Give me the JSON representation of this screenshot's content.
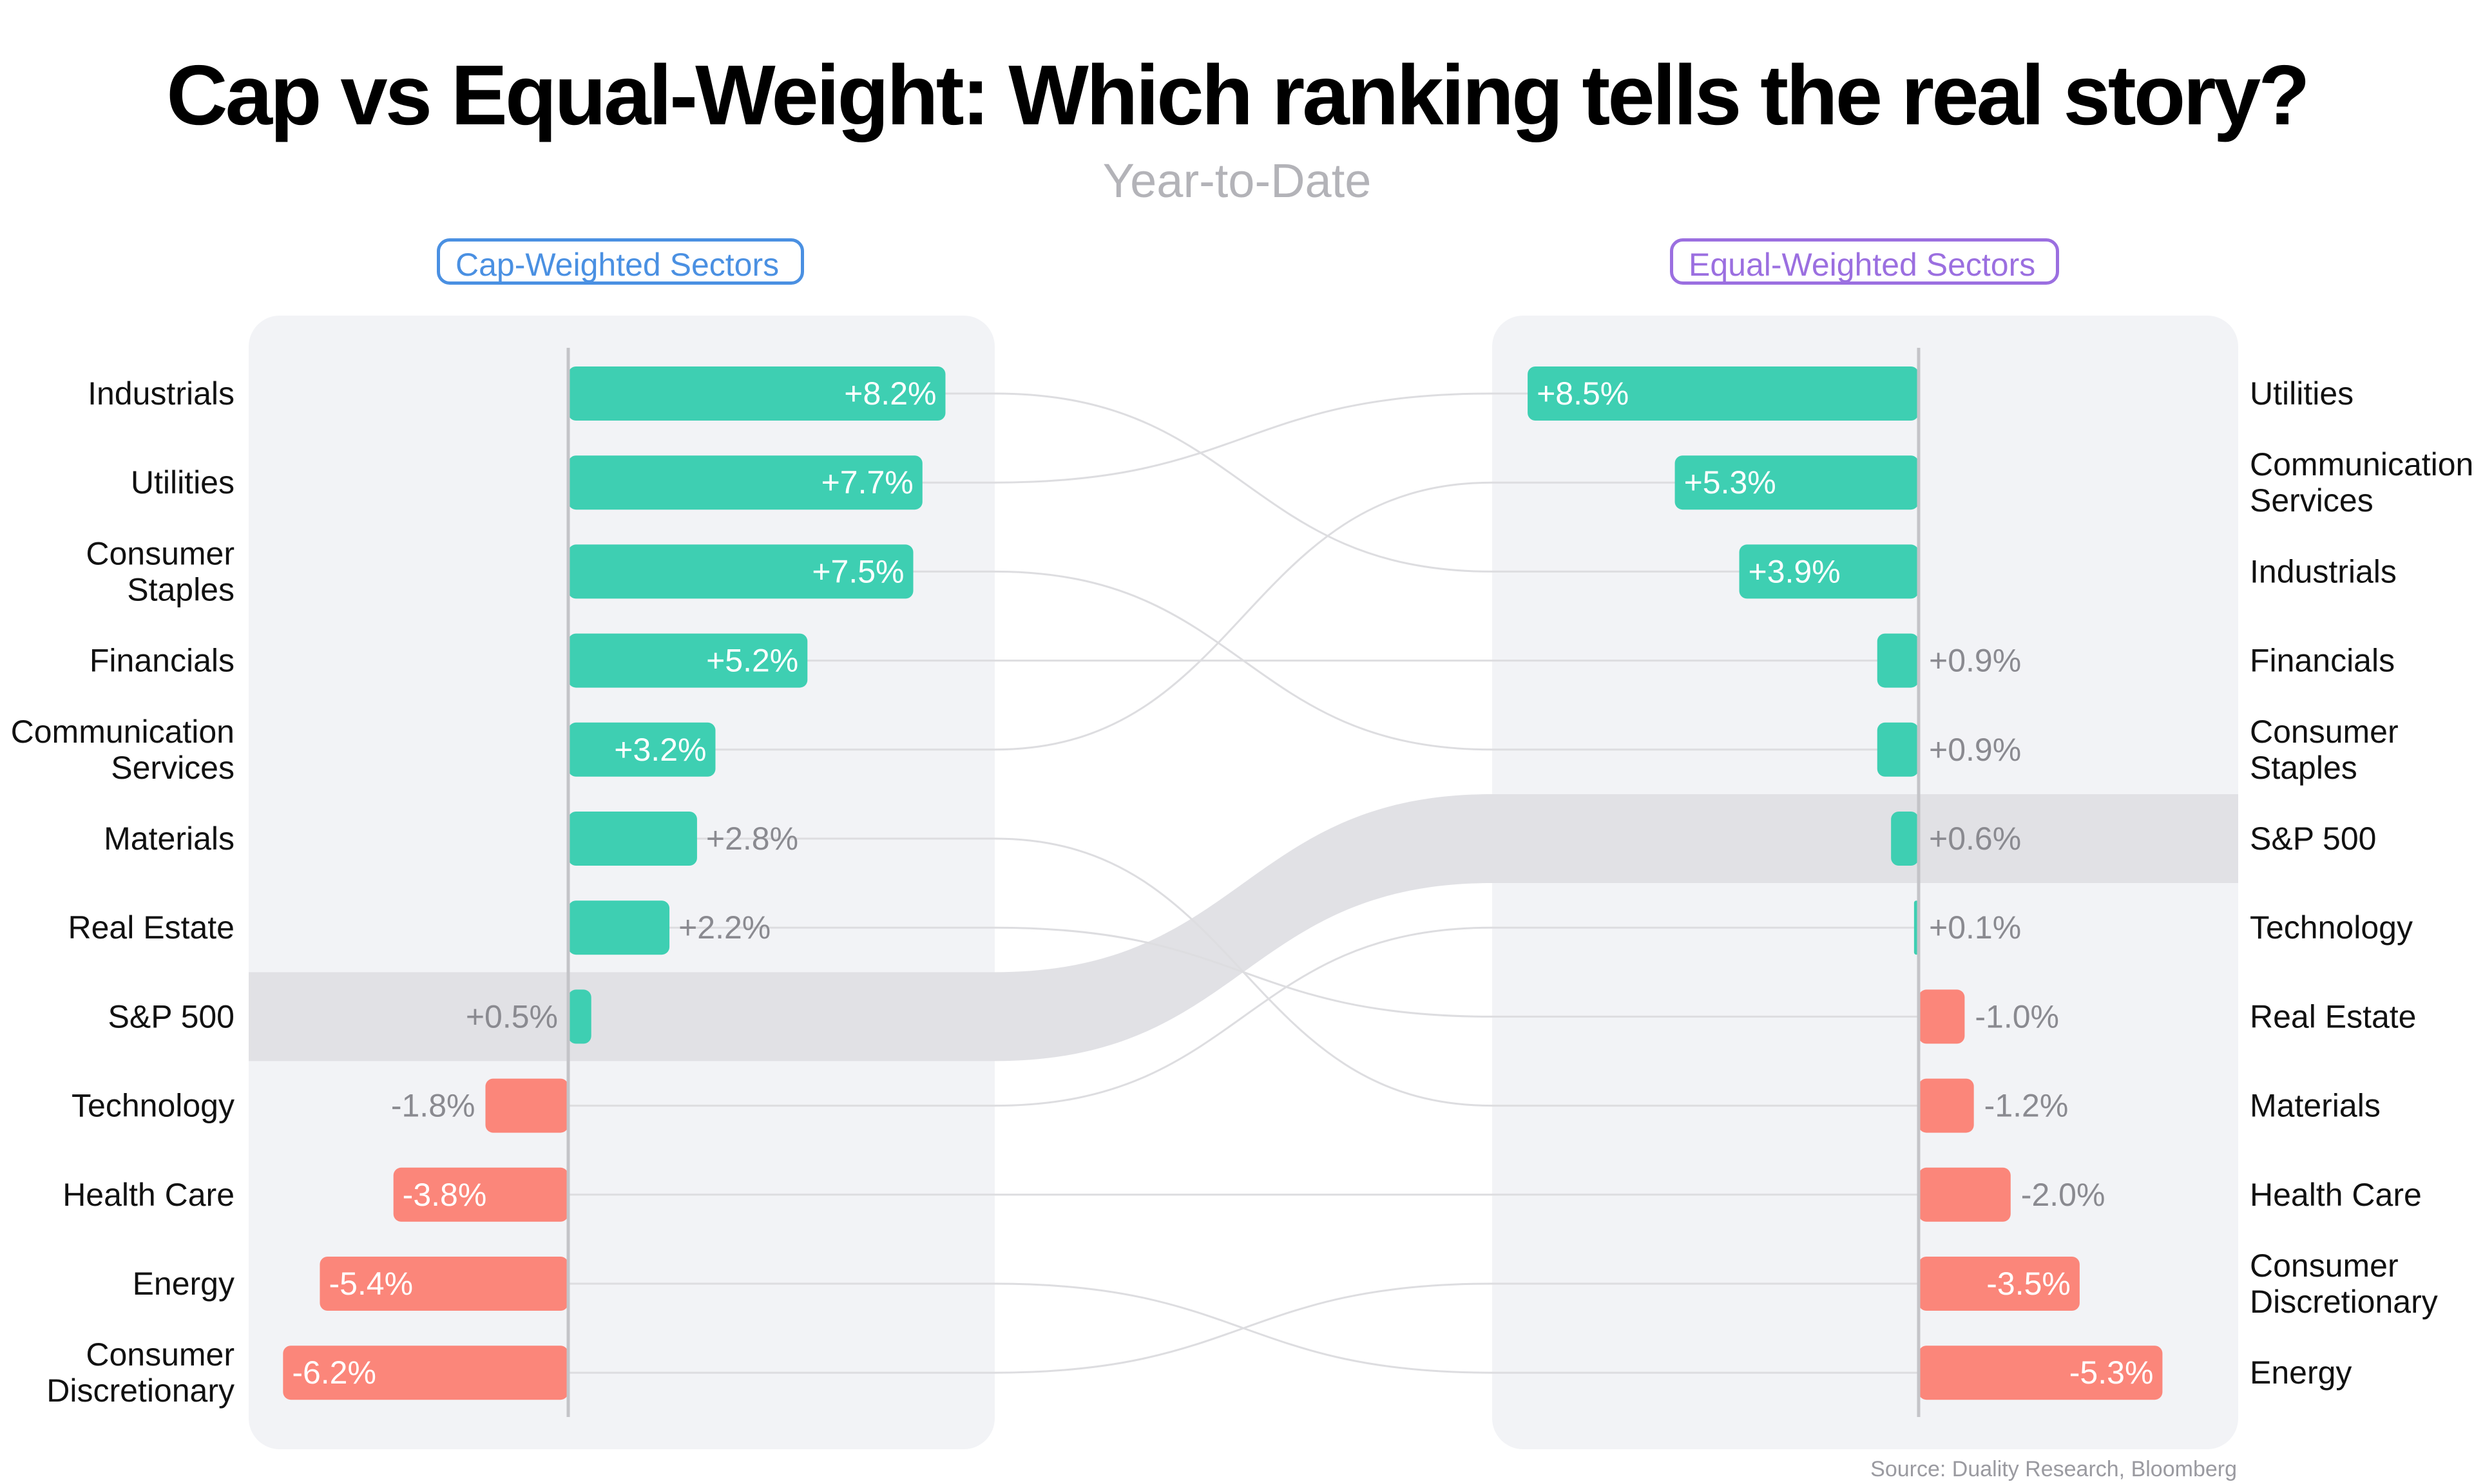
{
  "title": "Cap vs Equal-Weight: Which ranking tells the real story?",
  "subtitle": "Year-to-Date",
  "source": "Source: Duality Research, Bloomberg",
  "colors": {
    "positive": "#3ecfb2",
    "negative": "#fb867a",
    "panel": "#f2f3f6",
    "highlight": "#e1e1e5",
    "connector": "#dddde0",
    "cap_accent": "#4a90e2",
    "equal_accent": "#9b6fe0",
    "muted_label": "#8a8a90"
  },
  "chart_data": [
    {
      "type": "bar",
      "orientation": "horizontal",
      "title": "Cap-Weighted Sectors",
      "highlight": "S&P 500",
      "categories": [
        "Industrials",
        "Utilities",
        "Consumer Staples",
        "Financials",
        "Communication Services",
        "Materials",
        "Real Estate",
        "S&P 500",
        "Technology",
        "Health Care",
        "Energy",
        "Consumer Discretionary"
      ],
      "label_lines": [
        [
          "Industrials"
        ],
        [
          "Utilities"
        ],
        [
          "Consumer",
          "Staples"
        ],
        [
          "Financials"
        ],
        [
          "Communication",
          "Services"
        ],
        [
          "Materials"
        ],
        [
          "Real Estate"
        ],
        [
          "S&P 500"
        ],
        [
          "Technology"
        ],
        [
          "Health Care"
        ],
        [
          "Energy"
        ],
        [
          "Consumer",
          "Discretionary"
        ]
      ],
      "values": [
        8.2,
        7.7,
        7.5,
        5.2,
        3.2,
        2.8,
        2.2,
        0.5,
        -1.8,
        -3.8,
        -5.4,
        -6.2
      ],
      "value_labels": [
        "+8.2%",
        "+7.7%",
        "+7.5%",
        "+5.2%",
        "+3.2%",
        "+2.8%",
        "+2.2%",
        "+0.5%",
        "-1.8%",
        "-3.8%",
        "-5.4%",
        "-6.2%"
      ],
      "xlim": [
        -7,
        9.3
      ]
    },
    {
      "type": "bar",
      "orientation": "horizontal",
      "title": "Equal-Weighted Sectors",
      "highlight": "S&P 500",
      "categories": [
        "Utilities",
        "Communication Services",
        "Industrials",
        "Financials",
        "Consumer Staples",
        "S&P 500",
        "Technology",
        "Real Estate",
        "Materials",
        "Health Care",
        "Consumer Discretionary",
        "Energy"
      ],
      "label_lines": [
        [
          "Utilities"
        ],
        [
          "Communication",
          "Services"
        ],
        [
          "Industrials"
        ],
        [
          "Financials"
        ],
        [
          "Consumer",
          "Staples"
        ],
        [
          "S&P 500"
        ],
        [
          "Technology"
        ],
        [
          "Real Estate"
        ],
        [
          "Materials"
        ],
        [
          "Health Care"
        ],
        [
          "Consumer",
          "Discretionary"
        ],
        [
          "Energy"
        ]
      ],
      "values": [
        8.5,
        5.3,
        3.9,
        0.9,
        0.9,
        0.6,
        0.1,
        -1.0,
        -1.2,
        -2.0,
        -3.5,
        -5.3
      ],
      "value_labels": [
        "+8.5%",
        "+5.3%",
        "+3.9%",
        "+0.9%",
        "+0.9%",
        "+0.6%",
        "+0.1%",
        "-1.0%",
        "-1.2%",
        "-2.0%",
        "-3.5%",
        "-5.3%"
      ],
      "xlim": [
        -7.3,
        9.9
      ],
      "axis_direction": "reversed"
    }
  ]
}
